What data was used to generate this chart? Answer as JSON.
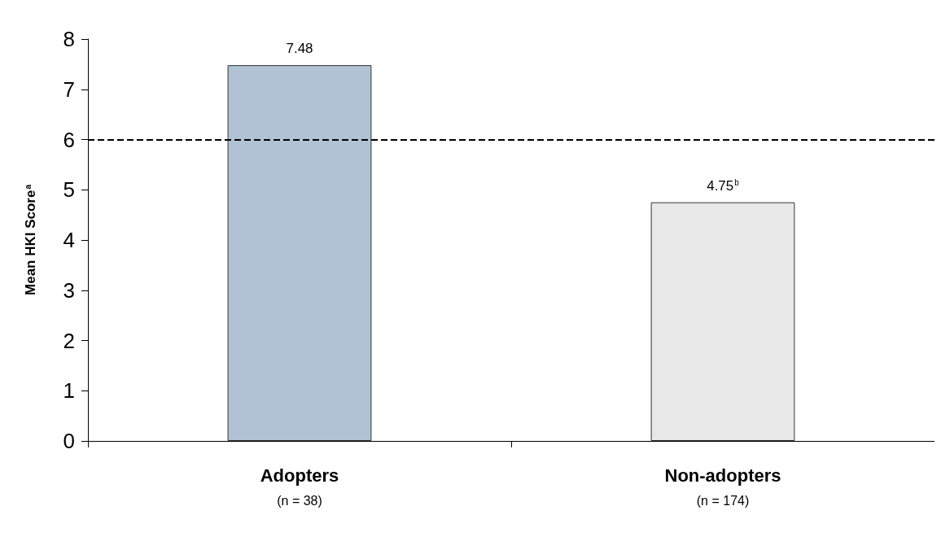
{
  "chart_data": {
    "type": "bar",
    "ylabel": "Mean HKI Score$^{a}$",
    "categories": [
      "Adopters\n(n = 38)",
      "Non-adopters\n(n = 174)"
    ],
    "values": [
      7.48,
      4.75
    ],
    "colors": [
      "#b0c2d4",
      "#e8e8e8"
    ],
    "value_labels": [
      "7.48",
      "4.75$^{b}$"
    ],
    "ylim": [
      0,
      8
    ],
    "yticks": [
      0,
      1,
      2,
      3,
      4,
      5,
      6,
      7,
      8
    ],
    "ref_lines": [
      {
        "axis": "y",
        "value": 6,
        "line_style": "dashed",
        "color": "#000000"
      }
    ],
    "grid": false
  }
}
